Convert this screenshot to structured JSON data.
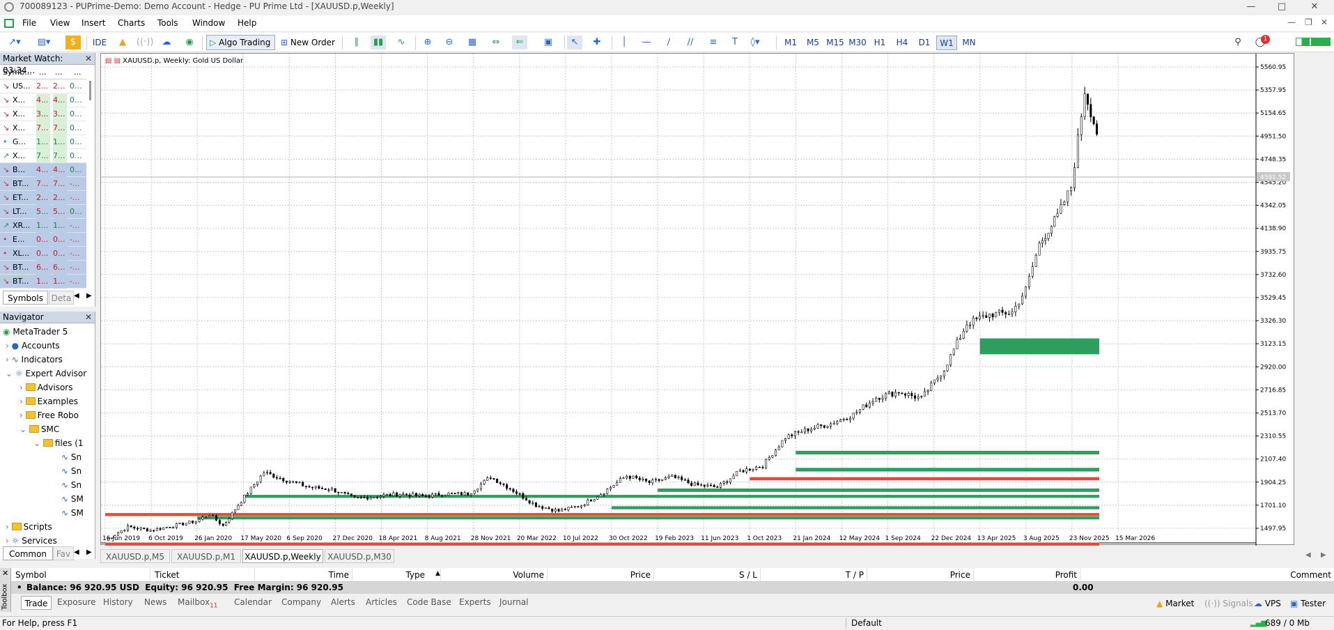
{
  "app": {
    "title": "700089123 - PUPrime-Demo: Demo Account - Hedge - PU Prime Ltd - [XAUUSD.p,Weekly]"
  },
  "menu": [
    "File",
    "View",
    "Insert",
    "Charts",
    "Tools",
    "Window",
    "Help"
  ],
  "toolbar": {
    "ide": "IDE",
    "algo": "Algo Trading",
    "neworder": "New Order",
    "timeframes": [
      "M1",
      "M5",
      "M15",
      "M30",
      "H1",
      "H4",
      "D1",
      "W1",
      "MN"
    ],
    "active_tf": "W1",
    "notif_count": "1"
  },
  "market_watch": {
    "title": "Market Watch: 03:34...",
    "headers": [
      "Symb...",
      "...",
      "...",
      "..."
    ],
    "rows": [
      [
        "US...",
        "2...",
        "2...",
        "0..."
      ],
      [
        "X...",
        "4...",
        "4...",
        "0..."
      ],
      [
        "X...",
        "3...",
        "3...",
        "0..."
      ],
      [
        "X...",
        "7...",
        "7...",
        "0..."
      ],
      [
        "G...",
        "1...",
        "1...",
        "0..."
      ],
      [
        "X...",
        "7...",
        "7...",
        "0..."
      ],
      [
        "B...",
        "4...",
        "4...",
        "0..."
      ],
      [
        "BT...",
        "7...",
        "7...",
        "-..."
      ],
      [
        "ET...",
        "2...",
        "2...",
        "-..."
      ],
      [
        "LT...",
        "5...",
        "5...",
        "0..."
      ],
      [
        "XR...",
        "1...",
        "1...",
        "-..."
      ],
      [
        "E...",
        "0...",
        "0...",
        "-..."
      ],
      [
        "XL...",
        "0...",
        "0...",
        "-..."
      ],
      [
        "BT...",
        "6...",
        "6...",
        "-..."
      ],
      [
        "BT...",
        "1...",
        "1...",
        "-..."
      ]
    ],
    "tabs": [
      "Symbols",
      "Deta"
    ]
  },
  "navigator": {
    "title": "Navigator",
    "items": [
      "MetaTrader 5",
      "Accounts",
      "Indicators",
      "Expert Advisor",
      "Advisors",
      "Examples",
      "Free Robo",
      "SMC",
      "files (1",
      "Sn",
      "Sn",
      "Sn",
      "SM",
      "SM",
      "Scripts",
      "Services"
    ],
    "tabs": [
      "Common",
      "Fav"
    ]
  },
  "chart": {
    "header": "XAUUSD.p, Weekly:  Gold US Dollar",
    "price_labels": [
      "5560.95",
      "5357.95",
      "5154.65",
      "4951.50",
      "4748.35",
      "4545.20",
      "4342.05",
      "4138.90",
      "3935.75",
      "3732.60",
      "3529.45",
      "3326.30",
      "3123.15",
      "2920.00",
      "2716.85",
      "2513.70",
      "2310.55",
      "2107.40",
      "1904.25",
      "1701.10",
      "1497.95"
    ],
    "current_price": "4591.52",
    "date_labels": [
      "16 Jun 2019",
      "6 Oct 2019",
      "26 Jan 2020",
      "17 May 2020",
      "6 Sep 2020",
      "27 Dec 2020",
      "18 Apr 2021",
      "8 Aug 2021",
      "28 Nov 2021",
      "20 Mar 2022",
      "10 Jul 2022",
      "30 Oct 2022",
      "19 Feb 2023",
      "11 Jun 2023",
      "1 Oct 2023",
      "21 Jan 2024",
      "12 May 2024",
      "1 Sep 2024",
      "22 Dec 2024",
      "13 Apr 2025",
      "3 Aug 2025",
      "23 Nov 2025",
      "15 Mar 2026"
    ],
    "colors": {
      "bull": "#000000",
      "zone_green": "#2e9e5e",
      "zone_red": "#e24a3b",
      "grid": "#c8c8c8"
    },
    "zones": [
      {
        "color": "green",
        "low": 3030,
        "high": 3170,
        "start": "13 Apr 2025"
      },
      {
        "color": "green",
        "low": 2148,
        "high": 2180,
        "start": "21 Jan 2024"
      },
      {
        "color": "green",
        "low": 1998,
        "high": 2030,
        "start": "21 Jan 2024"
      },
      {
        "color": "red",
        "low": 1920,
        "high": 1948,
        "start": "1 Oct 2023"
      },
      {
        "color": "green",
        "low": 1818,
        "high": 1848,
        "start": "19 Feb 2023"
      },
      {
        "color": "green",
        "low": 1766,
        "high": 1792,
        "start": "17 May 2020"
      },
      {
        "color": "green",
        "low": 1665,
        "high": 1692,
        "start": "30 Oct 2022"
      },
      {
        "color": "red",
        "low": 1605,
        "high": 1632,
        "start": "16 Jun 2019"
      },
      {
        "color": "green",
        "low": 1576,
        "high": 1602,
        "start": "26 Jan 2020"
      },
      {
        "color": "red",
        "low": 1345,
        "high": 1372,
        "start": "16 Jun 2019"
      }
    ]
  },
  "chart_tabs": [
    "XAUUSD.p,M5",
    "XAUUSD.p,M1",
    "XAUUSD.p,Weekly",
    "XAUUSD.p,M30"
  ],
  "active_chart_tab": "XAUUSD.p,Weekly",
  "toolbox": {
    "columns": [
      "Symbol",
      "Ticket",
      "Time",
      "Type",
      "Volume",
      "Price",
      "S / L",
      "T / P",
      "Price",
      "Profit",
      "Comment"
    ],
    "balance_line": "Balance: 96 920.95 USD  Equity: 96 920.95  Free Margin: 96 920.95",
    "profit": "0.00",
    "tabs": [
      "Trade",
      "Exposure",
      "History",
      "News",
      "Mailbox",
      "Calendar",
      "Company",
      "Alerts",
      "Articles",
      "Code Base",
      "Experts",
      "Journal"
    ],
    "mailbox_count": "11",
    "right": [
      "Market",
      "Signals",
      "VPS",
      "Tester"
    ],
    "side_label": "Toolbox"
  },
  "status": {
    "help": "For Help, press F1",
    "profile": "Default",
    "net": "689 / 0 Mb"
  }
}
